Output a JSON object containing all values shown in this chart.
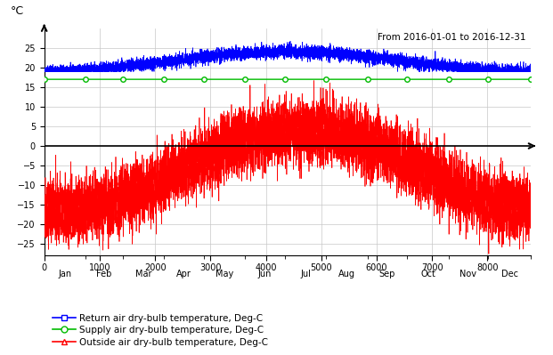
{
  "title_annotation": "From 2016-01-01 to 2016-12-31",
  "ylabel": "°C",
  "ylim": [
    -28,
    30
  ],
  "xlim": [
    0,
    8784
  ],
  "yticks": [
    -25,
    -20,
    -15,
    -10,
    -5,
    0,
    5,
    10,
    15,
    20,
    25
  ],
  "xticks_major": [
    0,
    1000,
    2000,
    3000,
    4000,
    5000,
    6000,
    7000,
    8000
  ],
  "month_boundaries": [
    0,
    744,
    1416,
    2160,
    2880,
    3624,
    4344,
    5088,
    5832,
    6552,
    7296,
    8016,
    8784
  ],
  "month_labels": [
    "Jan",
    "Feb",
    "Mar",
    "Apr",
    "May",
    "Jun",
    "Jul",
    "Aug",
    "Sep",
    "Oct",
    "Nov",
    "Dec"
  ],
  "supply_temp": 17.0,
  "return_air_color": "#0000ff",
  "supply_air_color": "#00bb00",
  "outside_air_color": "#ff0000",
  "zero_line_color": "#000000",
  "grid_color": "#c8c8c8",
  "background_color": "#ffffff",
  "legend_labels": [
    "Return air dry-bulb temperature, Deg-C",
    "Supply air dry-bulb temperature, Deg-C",
    "Outside air dry-bulb temperature, Deg-C"
  ]
}
